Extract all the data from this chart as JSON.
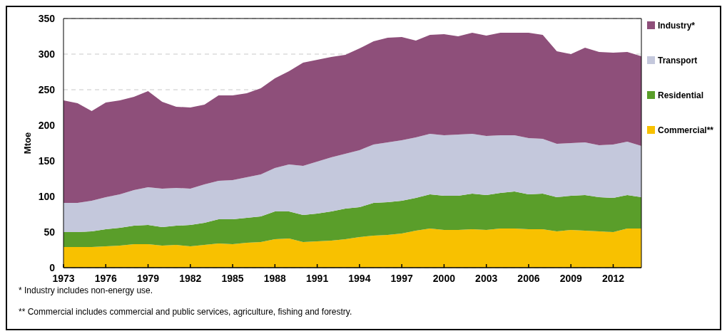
{
  "chart_data": {
    "type": "area",
    "stacked": true,
    "ylabel": "Mtoe",
    "x": [
      1973,
      1974,
      1975,
      1976,
      1977,
      1978,
      1979,
      1980,
      1981,
      1982,
      1983,
      1984,
      1985,
      1986,
      1987,
      1988,
      1989,
      1990,
      1991,
      1992,
      1993,
      1994,
      1995,
      1996,
      1997,
      1998,
      1999,
      2000,
      2001,
      2002,
      2003,
      2004,
      2005,
      2006,
      2007,
      2008,
      2009,
      2010,
      2011,
      2012,
      2013,
      2014
    ],
    "series": [
      {
        "name": "Commercial**",
        "color": "#f8c100",
        "values": [
          29,
          29,
          29,
          30,
          31,
          33,
          33,
          31,
          32,
          30,
          32,
          34,
          33,
          35,
          36,
          40,
          41,
          36,
          37,
          38,
          40,
          43,
          45,
          46,
          48,
          52,
          55,
          53,
          53,
          54,
          53,
          55,
          55,
          54,
          54,
          51,
          53,
          52,
          51,
          50,
          55,
          55
        ]
      },
      {
        "name": "Residential",
        "color": "#5a9e2a",
        "values": [
          21,
          21,
          22,
          24,
          25,
          26,
          27,
          26,
          27,
          30,
          31,
          34,
          35,
          35,
          36,
          39,
          38,
          38,
          39,
          41,
          43,
          42,
          46,
          46,
          46,
          46,
          48,
          48,
          48,
          50,
          49,
          50,
          52,
          49,
          50,
          48,
          48,
          50,
          48,
          48,
          47,
          44
        ]
      },
      {
        "name": "Transport",
        "color": "#c4c8dc",
        "values": [
          41,
          41,
          43,
          45,
          47,
          50,
          53,
          54,
          53,
          51,
          54,
          54,
          55,
          57,
          59,
          61,
          66,
          69,
          73,
          76,
          77,
          80,
          82,
          84,
          85,
          85,
          85,
          85,
          86,
          84,
          83,
          81,
          79,
          79,
          77,
          75,
          74,
          74,
          73,
          75,
          75,
          72
        ]
      },
      {
        "name": "Industry*",
        "color": "#8e4f7a",
        "values": [
          144,
          140,
          126,
          133,
          132,
          131,
          135,
          122,
          114,
          114,
          112,
          120,
          119,
          118,
          121,
          126,
          131,
          145,
          143,
          141,
          139,
          143,
          145,
          147,
          145,
          136,
          139,
          142,
          138,
          142,
          141,
          144,
          144,
          148,
          146,
          130,
          125,
          133,
          131,
          129,
          126,
          126
        ]
      }
    ],
    "xlim": [
      1973,
      2014
    ],
    "xticks": [
      1973,
      1976,
      1979,
      1982,
      1985,
      1988,
      1991,
      1994,
      1997,
      2000,
      2003,
      2006,
      2009,
      2012
    ],
    "ylim": [
      0,
      350
    ],
    "yticks": [
      0,
      50,
      100,
      150,
      200,
      250,
      300,
      350
    ],
    "grid": "y",
    "legend": "right",
    "annotations": [
      "* Industry includes non-energy use.",
      "** Commercial includes commercial and public services, agriculture, fishing and forestry."
    ]
  }
}
